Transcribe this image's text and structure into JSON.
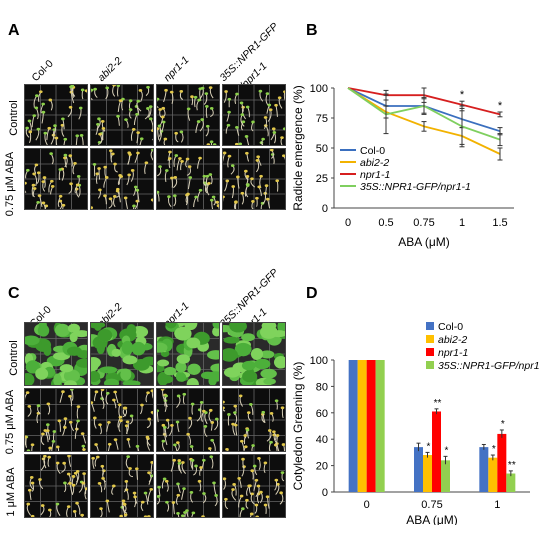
{
  "panels": {
    "A": {
      "letter": "A",
      "columns": [
        "Col-0",
        "abi2-2",
        "npr1-1",
        "35S::NPR1-GFP",
        "/npr1-1"
      ],
      "rows": [
        "Control",
        "0.75 μM ABA"
      ]
    },
    "B": {
      "letter": "B",
      "chart_data": {
        "type": "line",
        "categories": [
          "0",
          "0.5",
          "0.75",
          "1",
          "1.5"
        ],
        "ylabel": "Radicle emergence (%)",
        "xlabel": "ABA (μM)",
        "ylim": [
          0,
          100
        ],
        "yticks": [
          "0",
          "25",
          "50",
          "75",
          "100"
        ],
        "legend": "bottom-left",
        "series": [
          {
            "name": "Col-0",
            "color": "#3a6fbf",
            "values": [
              100,
              85,
              85,
              74,
              64
            ],
            "err": [
              0,
              10,
              7,
              7,
              3
            ]
          },
          {
            "name": "abi2-2",
            "color": "#f2b200",
            "values": [
              100,
              80,
              68,
              60,
              45
            ],
            "err": [
              0,
              5,
              4,
              7,
              5
            ]
          },
          {
            "name": "npr1-1",
            "color": "#d61f1f",
            "values": [
              100,
              94,
              94,
              86,
              78
            ],
            "err": [
              0,
              4,
              6,
              3,
              2
            ]
          },
          {
            "name": "35S::NPR1-GFP/npr1-1",
            "color": "#7fcf5f",
            "values": [
              100,
              78,
              85,
              68,
              57
            ],
            "err": [
              0,
              16,
              6,
              17,
              5
            ]
          }
        ],
        "annotations": [
          "*",
          "*"
        ]
      }
    },
    "C": {
      "letter": "C",
      "columns": [
        "Col-0",
        "abi2-2",
        "npr1-1",
        "35S::NPR1-GFP",
        "/npr1-1"
      ],
      "rows": [
        "Control",
        "0.75 μM ABA",
        "1 μM ABA"
      ]
    },
    "D": {
      "letter": "D",
      "chart_data": {
        "type": "bar",
        "categories": [
          "0",
          "0.75",
          "1"
        ],
        "ylabel": "Cotyledon Greening (%)",
        "xlabel": "ABA (μM)",
        "ylim": [
          0,
          100
        ],
        "yticks": [
          "0",
          "20",
          "40",
          "60",
          "80",
          "100"
        ],
        "legend": "top-right",
        "series": [
          {
            "name": "Col-0",
            "color": "#4472c4",
            "values": [
              100,
              34,
              34
            ],
            "err": [
              0,
              3,
              2
            ],
            "stars": [
              "",
              "",
              ""
            ]
          },
          {
            "name": "abi2-2",
            "color": "#ffc000",
            "values": [
              100,
              28,
              26
            ],
            "err": [
              0,
              2,
              2
            ],
            "stars": [
              "",
              "*",
              "*"
            ]
          },
          {
            "name": "npr1-1",
            "color": "#ff0000",
            "values": [
              100,
              61,
              44
            ],
            "err": [
              0,
              2,
              3
            ],
            "stars": [
              "",
              "**",
              "*"
            ]
          },
          {
            "name": "35S::NPR1-GFP/npr1-1",
            "color": "#92d050",
            "values": [
              100,
              24,
              14
            ],
            "err": [
              0,
              3,
              2
            ],
            "stars": [
              "",
              "*",
              "**"
            ]
          }
        ]
      }
    }
  }
}
